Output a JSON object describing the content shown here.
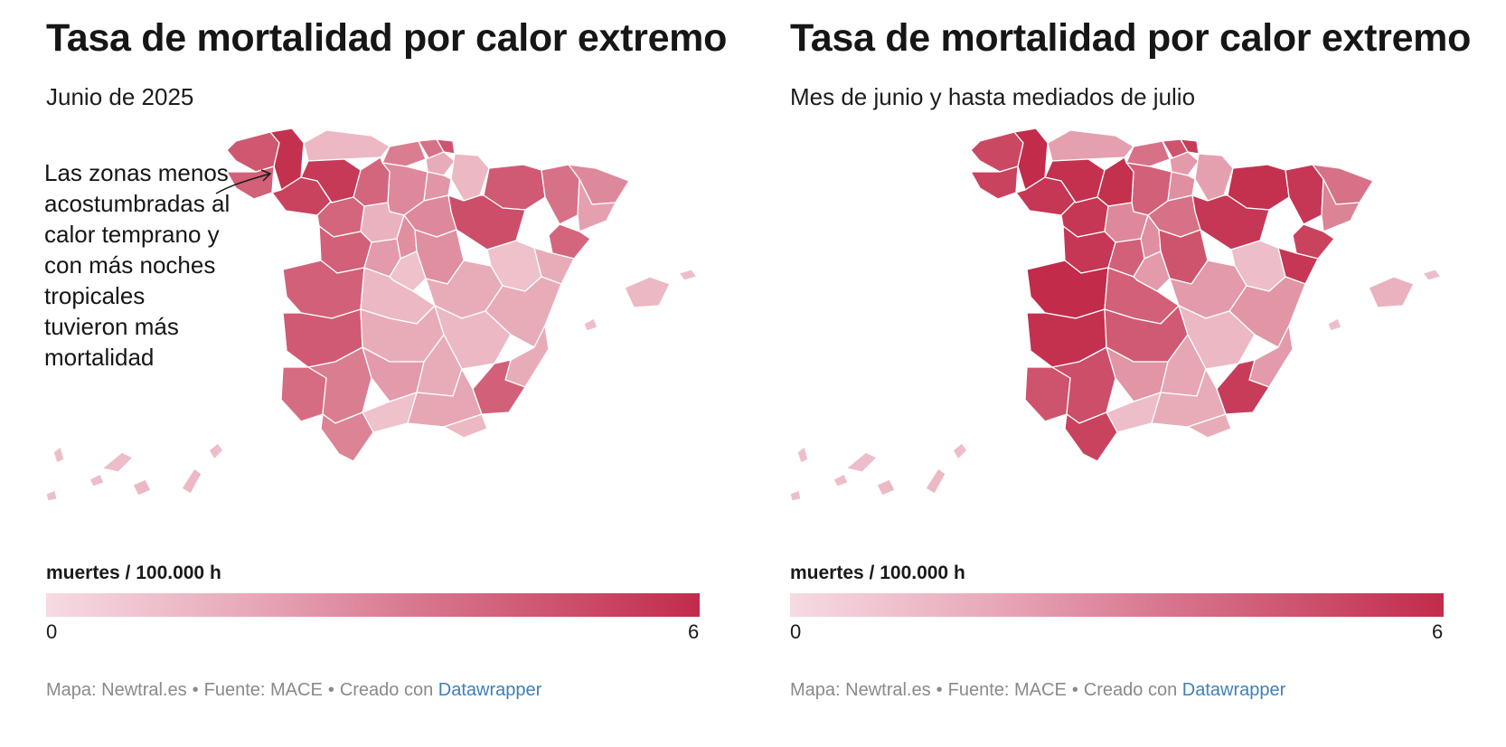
{
  "colors": {
    "scale_low": "#f6dbe2",
    "scale_high": "#c22b4a",
    "link": "#3d80b8"
  },
  "panels": [
    {
      "title": "Tasa de mortalidad por calor extremo",
      "subtitle": "Junio de 2025",
      "annotation": "Las zonas menos acostumbradas al calor temprano y con más noches tropicales tuvieron más mortalidad",
      "legend": {
        "title": "muertes / 100.000 h",
        "min": "0",
        "max": "6"
      },
      "footer": {
        "map_credit": "Mapa: Newtral.es",
        "sep": "•",
        "source": "Fuente: MACE",
        "created_with": "Creado con",
        "tool": "Datawrapper"
      }
    },
    {
      "title": "Tasa de mortalidad por calor extremo",
      "subtitle": "Mes de junio y hasta mediados de julio",
      "legend": {
        "title": "muertes / 100.000 h",
        "min": "0",
        "max": "6"
      },
      "footer": {
        "map_credit": "Mapa: Newtral.es",
        "sep": "•",
        "source": "Fuente: MACE",
        "created_with": "Creado con",
        "tool": "Datawrapper"
      }
    }
  ],
  "chart_data": [
    {
      "type": "choropleth",
      "title": "Tasa de mortalidad por calor extremo",
      "subtitle": "Junio de 2025",
      "unit": "muertes / 100.000 h",
      "scale": [
        0,
        6
      ],
      "regions": [
        {
          "id": "a-coruna",
          "value": 4.5
        },
        {
          "id": "lugo",
          "value": 5.8
        },
        {
          "id": "pontevedra",
          "value": 4.2
        },
        {
          "id": "ourense",
          "value": 5.2
        },
        {
          "id": "asturias",
          "value": 1.2
        },
        {
          "id": "cantabria",
          "value": 3.2
        },
        {
          "id": "bizkaia",
          "value": 3.6
        },
        {
          "id": "gipuzkoa",
          "value": 4.6
        },
        {
          "id": "araba",
          "value": 1.6
        },
        {
          "id": "navarra",
          "value": 1.2
        },
        {
          "id": "huesca",
          "value": 4.4
        },
        {
          "id": "lleida",
          "value": 3.6
        },
        {
          "id": "girona",
          "value": 2.8
        },
        {
          "id": "barcelona",
          "value": 2.0
        },
        {
          "id": "tarragona",
          "value": 4.0
        },
        {
          "id": "leon",
          "value": 5.5
        },
        {
          "id": "burgos",
          "value": 2.8
        },
        {
          "id": "la-rioja",
          "value": 2.4
        },
        {
          "id": "zaragoza",
          "value": 4.8
        },
        {
          "id": "palencia",
          "value": 4.0
        },
        {
          "id": "zamora",
          "value": 4.0
        },
        {
          "id": "valladolid",
          "value": 1.4
        },
        {
          "id": "soria",
          "value": 2.8
        },
        {
          "id": "salamanca",
          "value": 4.2
        },
        {
          "id": "segovia",
          "value": 2.6
        },
        {
          "id": "avila",
          "value": 2.2
        },
        {
          "id": "guadalajara",
          "value": 2.6
        },
        {
          "id": "teruel",
          "value": 0.9
        },
        {
          "id": "caceres",
          "value": 4.2
        },
        {
          "id": "madrid",
          "value": 0.9
        },
        {
          "id": "cuenca",
          "value": 1.6
        },
        {
          "id": "castellon",
          "value": 1.6
        },
        {
          "id": "toledo",
          "value": 1.2
        },
        {
          "id": "valencia",
          "value": 1.6
        },
        {
          "id": "badajoz",
          "value": 4.4
        },
        {
          "id": "ciudad-real",
          "value": 1.6
        },
        {
          "id": "albacete",
          "value": 1.2
        },
        {
          "id": "alicante",
          "value": 1.6
        },
        {
          "id": "huelva",
          "value": 3.8
        },
        {
          "id": "sevilla",
          "value": 3.2
        },
        {
          "id": "cordoba",
          "value": 2.2
        },
        {
          "id": "jaen",
          "value": 1.6
        },
        {
          "id": "granada",
          "value": 1.8
        },
        {
          "id": "almeria",
          "value": 1.2
        },
        {
          "id": "murcia",
          "value": 4.2
        },
        {
          "id": "malaga",
          "value": 0.9
        },
        {
          "id": "cadiz",
          "value": 3.0
        },
        {
          "id": "mallorca",
          "value": 1.2
        },
        {
          "id": "menorca",
          "value": 1.0
        },
        {
          "id": "ibiza",
          "value": 1.0
        },
        {
          "id": "canarias-lanzarote",
          "value": 1.0
        },
        {
          "id": "canarias-fuerteventura",
          "value": 1.2
        },
        {
          "id": "canarias-gran-canaria",
          "value": 1.2
        },
        {
          "id": "canarias-tenerife",
          "value": 1.0
        },
        {
          "id": "canarias-la-palma",
          "value": 1.0
        },
        {
          "id": "canarias-gomera",
          "value": 1.0
        },
        {
          "id": "canarias-hierro",
          "value": 1.0
        }
      ]
    },
    {
      "type": "choropleth",
      "title": "Tasa de mortalidad por calor extremo",
      "subtitle": "Mes de junio y hasta mediados de julio",
      "unit": "muertes / 100.000 h",
      "scale": [
        0,
        6
      ],
      "regions": [
        {
          "id": "a-coruna",
          "value": 5.0
        },
        {
          "id": "lugo",
          "value": 6.0
        },
        {
          "id": "pontevedra",
          "value": 5.2
        },
        {
          "id": "ourense",
          "value": 5.6
        },
        {
          "id": "asturias",
          "value": 2.0
        },
        {
          "id": "cantabria",
          "value": 3.6
        },
        {
          "id": "bizkaia",
          "value": 4.6
        },
        {
          "id": "gipuzkoa",
          "value": 5.4
        },
        {
          "id": "araba",
          "value": 2.2
        },
        {
          "id": "navarra",
          "value": 2.0
        },
        {
          "id": "huesca",
          "value": 5.8
        },
        {
          "id": "lleida",
          "value": 5.6
        },
        {
          "id": "girona",
          "value": 3.6
        },
        {
          "id": "barcelona",
          "value": 3.0
        },
        {
          "id": "tarragona",
          "value": 5.2
        },
        {
          "id": "leon",
          "value": 5.8
        },
        {
          "id": "burgos",
          "value": 4.2
        },
        {
          "id": "la-rioja",
          "value": 2.6
        },
        {
          "id": "zaragoza",
          "value": 5.6
        },
        {
          "id": "palencia",
          "value": 5.8
        },
        {
          "id": "zamora",
          "value": 5.6
        },
        {
          "id": "valladolid",
          "value": 2.8
        },
        {
          "id": "soria",
          "value": 3.6
        },
        {
          "id": "salamanca",
          "value": 5.6
        },
        {
          "id": "segovia",
          "value": 2.6
        },
        {
          "id": "avila",
          "value": 4.2
        },
        {
          "id": "guadalajara",
          "value": 4.6
        },
        {
          "id": "teruel",
          "value": 1.0
        },
        {
          "id": "caceres",
          "value": 6.0
        },
        {
          "id": "madrid",
          "value": 2.2
        },
        {
          "id": "cuenca",
          "value": 2.2
        },
        {
          "id": "castellon",
          "value": 5.6
        },
        {
          "id": "toledo",
          "value": 4.2
        },
        {
          "id": "valencia",
          "value": 2.4
        },
        {
          "id": "badajoz",
          "value": 5.8
        },
        {
          "id": "ciudad-real",
          "value": 4.4
        },
        {
          "id": "albacete",
          "value": 1.2
        },
        {
          "id": "alicante",
          "value": 2.2
        },
        {
          "id": "huelva",
          "value": 4.6
        },
        {
          "id": "sevilla",
          "value": 4.8
        },
        {
          "id": "cordoba",
          "value": 2.4
        },
        {
          "id": "jaen",
          "value": 1.8
        },
        {
          "id": "granada",
          "value": 1.6
        },
        {
          "id": "almeria",
          "value": 1.6
        },
        {
          "id": "murcia",
          "value": 5.4
        },
        {
          "id": "malaga",
          "value": 1.0
        },
        {
          "id": "cadiz",
          "value": 5.2
        },
        {
          "id": "mallorca",
          "value": 1.4
        },
        {
          "id": "menorca",
          "value": 1.0
        },
        {
          "id": "ibiza",
          "value": 1.0
        },
        {
          "id": "canarias-lanzarote",
          "value": 1.0
        },
        {
          "id": "canarias-fuerteventura",
          "value": 1.2
        },
        {
          "id": "canarias-gran-canaria",
          "value": 1.2
        },
        {
          "id": "canarias-tenerife",
          "value": 1.0
        },
        {
          "id": "canarias-la-palma",
          "value": 1.0
        },
        {
          "id": "canarias-gomera",
          "value": 1.0
        },
        {
          "id": "canarias-hierro",
          "value": 1.0
        }
      ]
    }
  ]
}
